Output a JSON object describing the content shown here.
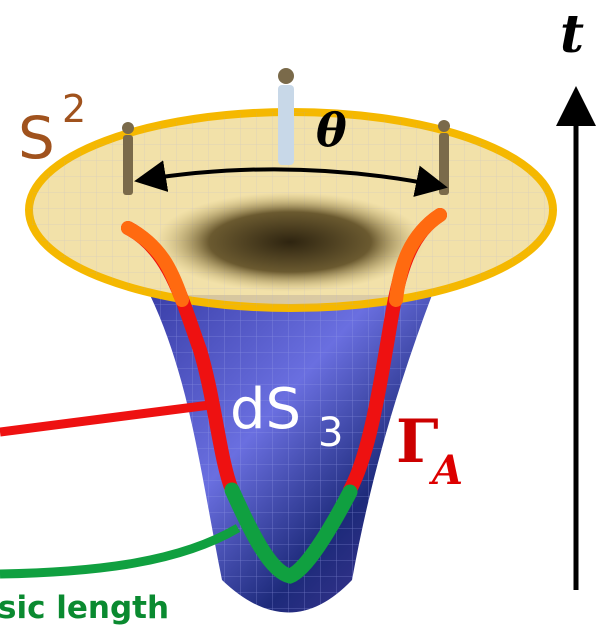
{
  "labels": {
    "time": "t",
    "sphere": {
      "base": "S",
      "sup": "2"
    },
    "angle": "θ",
    "desitter": {
      "base": "dS",
      "sub": "3"
    },
    "curve": {
      "base": "Γ",
      "sub": "A"
    },
    "geodesic": "sic length"
  }
}
